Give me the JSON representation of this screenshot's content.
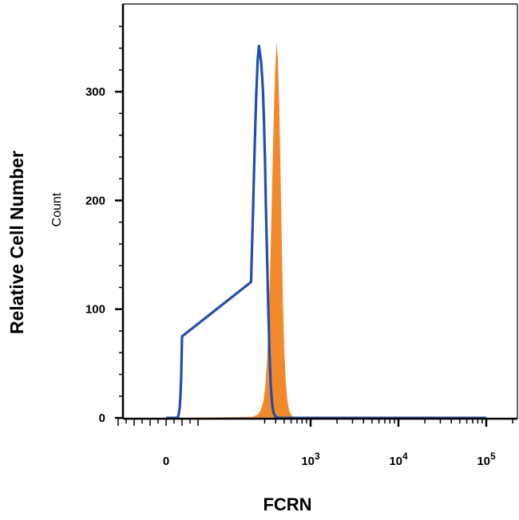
{
  "chart_data": {
    "type": "area",
    "xlabel": "FCRN",
    "ylabel": "Relative Cell Number",
    "ylabel_secondary": "Count",
    "x_scale": "biexponential",
    "x_tick_labels": [
      {
        "value": 0,
        "label": "0"
      },
      {
        "value": 1000,
        "label": "10",
        "exp": "3"
      },
      {
        "value": 10000,
        "label": "10",
        "exp": "4"
      },
      {
        "value": 100000,
        "label": "10",
        "exp": "5"
      }
    ],
    "y_tick_labels": [
      {
        "value": 0,
        "label": "0"
      },
      {
        "value": 100,
        "label": "100"
      },
      {
        "value": 200,
        "label": "200"
      },
      {
        "value": 300,
        "label": "300"
      }
    ],
    "ylim": [
      0,
      385
    ],
    "grid": false,
    "series": [
      {
        "style": "filled",
        "color": "#f28a2c",
        "points": [
          [
            0,
            0
          ],
          [
            150,
            0
          ],
          [
            220,
            1
          ],
          [
            250,
            3
          ],
          [
            270,
            7
          ],
          [
            290,
            15
          ],
          [
            305,
            30
          ],
          [
            320,
            55
          ],
          [
            335,
            95
          ],
          [
            350,
            150
          ],
          [
            365,
            215
          ],
          [
            380,
            275
          ],
          [
            395,
            320
          ],
          [
            410,
            345
          ],
          [
            425,
            330
          ],
          [
            440,
            285
          ],
          [
            455,
            225
          ],
          [
            470,
            160
          ],
          [
            485,
            105
          ],
          [
            500,
            65
          ],
          [
            520,
            35
          ],
          [
            540,
            18
          ],
          [
            560,
            10
          ],
          [
            580,
            5
          ],
          [
            600,
            3
          ],
          [
            630,
            1
          ],
          [
            660,
            0
          ],
          [
            100000,
            0
          ]
        ]
      },
      {
        "style": "line",
        "color": "#1f4fb0",
        "points": [
          [
            0,
            0
          ],
          [
            130,
            0
          ],
          [
            150,
            1
          ],
          [
            160,
            4
          ],
          [
            170,
            9
          ],
          [
            180,
            20
          ],
          [
            190,
            40
          ],
          [
            200,
            75
          ],
          [
            210,
            125
          ],
          [
            220,
            185
          ],
          [
            230,
            245
          ],
          [
            240,
            295
          ],
          [
            250,
            330
          ],
          [
            258,
            342
          ],
          [
            266,
            335
          ],
          [
            273,
            328
          ],
          [
            280,
            315
          ],
          [
            287,
            300
          ],
          [
            294,
            275
          ],
          [
            302,
            240
          ],
          [
            310,
            195
          ],
          [
            320,
            145
          ],
          [
            330,
            100
          ],
          [
            340,
            60
          ],
          [
            352,
            30
          ],
          [
            365,
            12
          ],
          [
            380,
            4
          ],
          [
            400,
            1
          ],
          [
            430,
            0
          ],
          [
            100000,
            0
          ]
        ]
      }
    ]
  }
}
